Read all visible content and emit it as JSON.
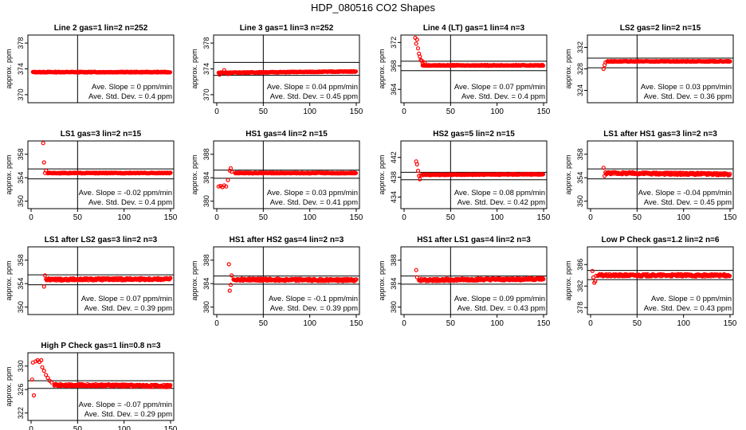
{
  "figure_title": "HDP_080516  CO2 Shapes",
  "ylabel": "approx. ppm",
  "slope_prefix": "Ave. Slope =",
  "slope_unit": "ppm/min",
  "std_prefix": "Ave. Std. Dev. =",
  "std_unit": "ppm",
  "colors": {
    "points": "#ff0000",
    "axes": "#000000"
  },
  "chart_data": [
    {
      "type": "scatter",
      "title": "Line 2 gas=1 lin=2 n=252",
      "xlim": [
        0,
        150
      ],
      "ylim": [
        369,
        379
      ],
      "yticks": [
        370,
        374,
        378
      ],
      "xticks": [
        0,
        50,
        100,
        150
      ],
      "show_xticks": false,
      "vline": 50,
      "hlines": [],
      "slope": "0",
      "std": "0.4",
      "series": [
        {
          "x": [
            2,
            150
          ],
          "y": [
            373.5,
            373.5
          ],
          "shape": "flat"
        }
      ],
      "extra": []
    },
    {
      "type": "scatter",
      "title": "Line 3 gas=1 lin=3 n=252",
      "xlim": [
        0,
        150
      ],
      "ylim": [
        369,
        379
      ],
      "yticks": [
        370,
        374,
        378
      ],
      "xticks": [
        0,
        50,
        100,
        150
      ],
      "show_xticks": true,
      "vline": 50,
      "hlines": [
        375,
        373
      ],
      "slope": "0.04",
      "std": "0.45",
      "series": [
        {
          "x": [
            2,
            150
          ],
          "y": [
            373.4,
            373.6
          ],
          "shape": "flat"
        }
      ],
      "extra": [
        [
          3,
          373.1
        ],
        [
          8,
          373.8
        ],
        [
          12,
          373.2
        ]
      ]
    },
    {
      "type": "scatter",
      "title": "Line 4 (LT) gas=1 lin=4 n=3",
      "xlim": [
        0,
        150
      ],
      "ylim": [
        362,
        373
      ],
      "yticks": [
        364,
        368,
        372
      ],
      "xticks": [
        0,
        50,
        100,
        150
      ],
      "show_xticks": true,
      "vline": 50,
      "hlines": [
        368.8,
        367.2
      ],
      "slope": "0.07",
      "std": "0.4",
      "series": [
        {
          "x": [
            20,
            150
          ],
          "y": [
            368.1,
            368.1
          ],
          "shape": "flat"
        }
      ],
      "extra": [
        [
          12,
          372.8
        ],
        [
          13,
          371.8
        ],
        [
          14,
          372.5
        ],
        [
          15,
          371.0
        ],
        [
          16,
          370.1
        ],
        [
          17,
          369.6
        ],
        [
          18,
          369.0
        ],
        [
          19,
          368.9
        ],
        [
          20,
          368.5
        ],
        [
          22,
          368.6
        ]
      ]
    },
    {
      "type": "scatter",
      "title": "LS2 gas=2 lin=2 n=15",
      "xlim": [
        0,
        150
      ],
      "ylim": [
        322,
        334
      ],
      "yticks": [
        324,
        328,
        332
      ],
      "xticks": [
        0,
        50,
        100,
        150
      ],
      "show_xticks": false,
      "vline": 50,
      "hlines": [
        330,
        328.2
      ],
      "slope": "0.03",
      "std": "0.36",
      "series": [
        {
          "x": [
            18,
            150
          ],
          "y": [
            329.4,
            329.4
          ],
          "shape": "flat"
        }
      ],
      "extra": [
        [
          14,
          328.0
        ],
        [
          15,
          328.7
        ],
        [
          16,
          329.2
        ]
      ]
    },
    {
      "type": "scatter",
      "title": "LS1 gas=3 lin=2 n=15",
      "xlim": [
        0,
        150
      ],
      "ylim": [
        349,
        360
      ],
      "yticks": [
        350,
        354,
        358
      ],
      "xticks": [
        0,
        50,
        100,
        150
      ],
      "show_xticks": true,
      "vline": 50,
      "hlines": [
        355.5,
        353.8
      ],
      "slope": "-0.02",
      "std": "0.4",
      "series": [
        {
          "x": [
            18,
            150
          ],
          "y": [
            354.8,
            354.8
          ],
          "shape": "flat"
        }
      ],
      "extra": [
        [
          13,
          359.9
        ],
        [
          14,
          356.6
        ],
        [
          15,
          354.8
        ],
        [
          16,
          355.2
        ]
      ]
    },
    {
      "type": "scatter",
      "title": "HS1 gas=4 lin=2 n=15",
      "xlim": [
        0,
        150
      ],
      "ylim": [
        379,
        390
      ],
      "yticks": [
        380,
        384,
        388
      ],
      "xticks": [
        0,
        50,
        100,
        150
      ],
      "show_xticks": true,
      "vline": 50,
      "hlines": [
        385.3,
        383.9
      ],
      "slope": "0.03",
      "std": "0.41",
      "series": [
        {
          "x": [
            20,
            150
          ],
          "y": [
            384.8,
            384.8
          ],
          "shape": "flat"
        }
      ],
      "extra": [
        [
          2,
          382.5
        ],
        [
          4,
          382.6
        ],
        [
          6,
          382.4
        ],
        [
          8,
          382.7
        ],
        [
          10,
          382.5
        ],
        [
          12,
          383.6
        ],
        [
          14,
          385.2
        ],
        [
          15,
          385.6
        ],
        [
          16,
          385.0
        ]
      ]
    },
    {
      "type": "scatter",
      "title": "HS2 gas=5 lin=2 n=15",
      "xlim": [
        0,
        150
      ],
      "ylim": [
        432,
        445
      ],
      "yticks": [
        434,
        438,
        442
      ],
      "xticks": [
        0,
        50,
        100,
        150
      ],
      "show_xticks": true,
      "vline": 50,
      "hlines": [
        439,
        437.5
      ],
      "slope": "0.08",
      "std": "0.42",
      "series": [
        {
          "x": [
            20,
            150
          ],
          "y": [
            438.5,
            438.6
          ],
          "shape": "flat"
        }
      ],
      "extra": [
        [
          13,
          441.2
        ],
        [
          14,
          440.6
        ],
        [
          15,
          439.3
        ],
        [
          16,
          438.3
        ],
        [
          17,
          437.6
        ],
        [
          18,
          438.4
        ]
      ]
    },
    {
      "type": "scatter",
      "title": "LS1 after HS1 gas=3 lin=2 n=3",
      "xlim": [
        0,
        150
      ],
      "ylim": [
        349,
        360
      ],
      "yticks": [
        350,
        354,
        358
      ],
      "xticks": [
        0,
        50,
        100,
        150
      ],
      "show_xticks": true,
      "vline": 50,
      "hlines": [
        355.5,
        353.8
      ],
      "slope": "-0.04",
      "std": "0.45",
      "series": [
        {
          "x": [
            16,
            150
          ],
          "y": [
            354.8,
            354.6
          ],
          "shape": "noisy"
        }
      ],
      "extra": [
        [
          14,
          355.7
        ],
        [
          15,
          354.3
        ]
      ]
    },
    {
      "type": "scatter",
      "title": "LS1 after LS2 gas=3 lin=2 n=3",
      "xlim": [
        0,
        150
      ],
      "ylim": [
        349,
        360
      ],
      "yticks": [
        350,
        354,
        358
      ],
      "xticks": [
        0,
        50,
        100,
        150
      ],
      "show_xticks": false,
      "vline": 50,
      "hlines": [
        355.5,
        353.8
      ],
      "slope": "0.07",
      "std": "0.39",
      "series": [
        {
          "x": [
            16,
            150
          ],
          "y": [
            354.7,
            354.8
          ],
          "shape": "noisy"
        }
      ],
      "extra": [
        [
          14,
          353.5
        ],
        [
          15,
          355.4
        ]
      ]
    },
    {
      "type": "scatter",
      "title": "HS1 after HS2 gas=4 lin=2 n=3",
      "xlim": [
        0,
        150
      ],
      "ylim": [
        379,
        390
      ],
      "yticks": [
        380,
        384,
        388
      ],
      "xticks": [
        0,
        50,
        100,
        150
      ],
      "show_xticks": true,
      "vline": 50,
      "hlines": [
        385.3,
        383.9
      ],
      "slope": "-0.1",
      "std": "0.39",
      "series": [
        {
          "x": [
            18,
            150
          ],
          "y": [
            384.7,
            384.6
          ],
          "shape": "noisy"
        }
      ],
      "extra": [
        [
          13,
          387.3
        ],
        [
          14,
          382.8
        ],
        [
          15,
          383.8
        ],
        [
          16,
          385.4
        ]
      ]
    },
    {
      "type": "scatter",
      "title": "HS1 after LS1 gas=4 lin=2 n=3",
      "xlim": [
        0,
        150
      ],
      "ylim": [
        379,
        390
      ],
      "yticks": [
        380,
        384,
        388
      ],
      "xticks": [
        0,
        50,
        100,
        150
      ],
      "show_xticks": true,
      "vline": 50,
      "hlines": [
        385.3,
        383.9
      ],
      "slope": "0.09",
      "std": "0.43",
      "series": [
        {
          "x": [
            16,
            150
          ],
          "y": [
            384.6,
            384.8
          ],
          "shape": "noisy"
        }
      ],
      "extra": [
        [
          13,
          386.3
        ],
        [
          14,
          385.1
        ]
      ]
    },
    {
      "type": "scatter",
      "title": "Low P Check gas=1.2 lin=2 n=6",
      "xlim": [
        0,
        150
      ],
      "ylim": [
        377,
        389
      ],
      "yticks": [
        378,
        382,
        386
      ],
      "xticks": [
        0,
        50,
        100,
        150
      ],
      "show_xticks": true,
      "vline": 50,
      "hlines": [
        384.9,
        383.2
      ],
      "slope": "0",
      "std": "0.43",
      "series": [
        {
          "x": [
            8,
            150
          ],
          "y": [
            384.0,
            384.0
          ],
          "shape": "noisy"
        }
      ],
      "extra": [
        [
          2,
          384.8
        ],
        [
          3,
          383.6
        ],
        [
          4,
          382.6
        ],
        [
          5,
          382.9
        ],
        [
          6,
          383.9
        ]
      ]
    },
    {
      "type": "scatter",
      "title": "High P Check gas=1 lin=0.8 n=3",
      "xlim": [
        0,
        150
      ],
      "ylim": [
        321,
        332
      ],
      "yticks": [
        322,
        326,
        330
      ],
      "xticks": [
        0,
        50,
        100,
        150
      ],
      "show_xticks": true,
      "vline": 50,
      "hlines": [
        327.5,
        326.2
      ],
      "slope": "-0.07",
      "std": "0.29",
      "series": [
        {
          "x": [
            25,
            150
          ],
          "y": [
            326.8,
            326.6
          ],
          "shape": "noisy"
        }
      ],
      "extra": [
        [
          1,
          327.7
        ],
        [
          2,
          330.6
        ],
        [
          3,
          325.0
        ],
        [
          5,
          330.8
        ],
        [
          7,
          331.0
        ],
        [
          9,
          330.7
        ],
        [
          11,
          331.0
        ],
        [
          12,
          329.8
        ],
        [
          14,
          329.2
        ],
        [
          16,
          328.5
        ],
        [
          18,
          328.0
        ],
        [
          20,
          327.5
        ],
        [
          22,
          327.2
        ]
      ]
    }
  ]
}
